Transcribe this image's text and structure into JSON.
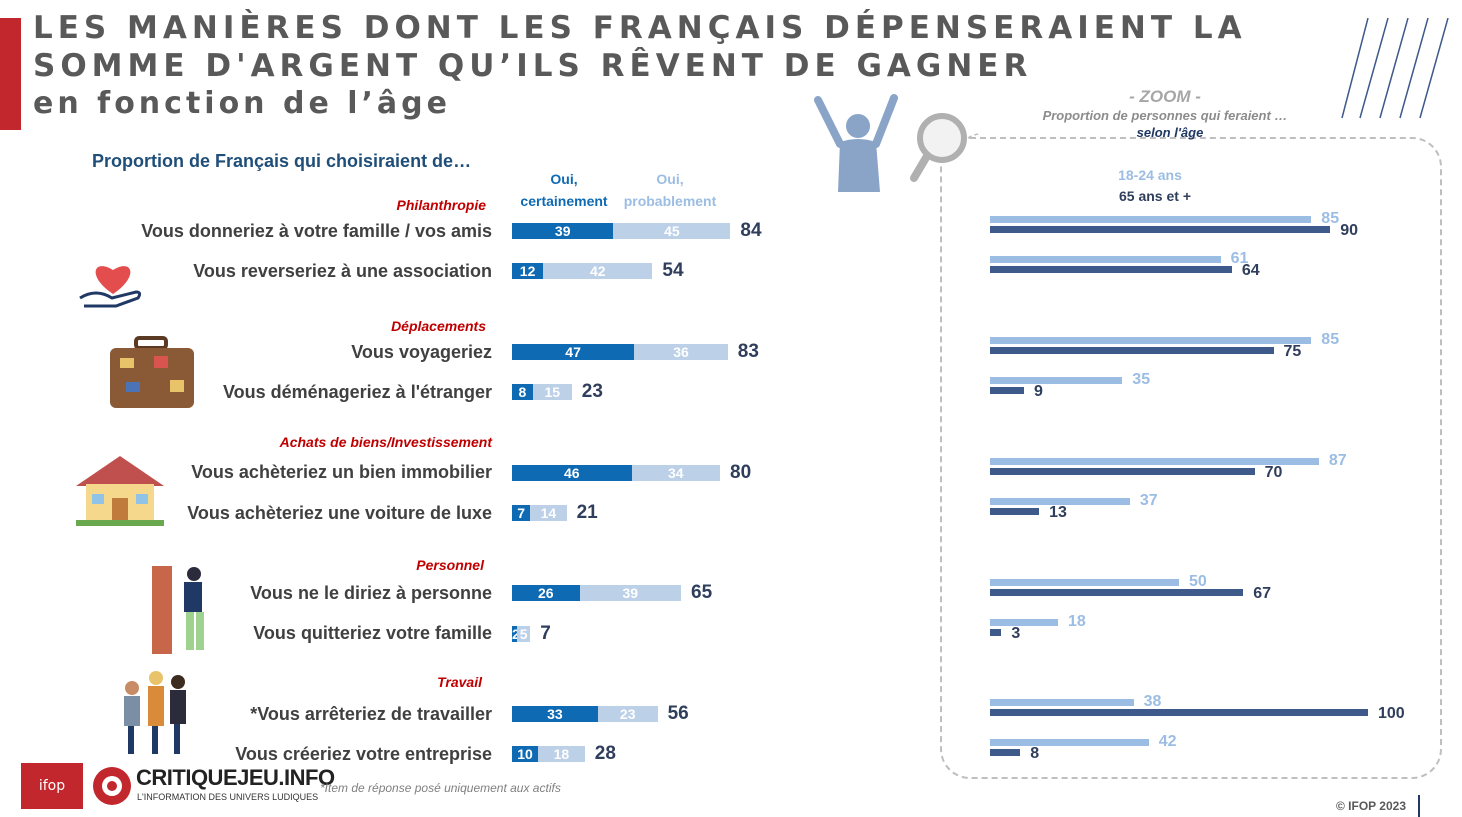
{
  "title": {
    "line1": "LES MANIÈRES DONT LES FRANÇAIS DÉPENSERAIENT LA",
    "line2": "SOMME D'ARGENT QU’ILS RÊVENT DE GAGNER",
    "line3": "en fonction de l’âge"
  },
  "subtitle": "Proportion de Français qui choisiraient de…",
  "column_headers": {
    "certain_line1": "Oui,",
    "certain_line2": "certainement",
    "probable_line1": "Oui,",
    "probable_line2": "probablement"
  },
  "zoom": {
    "title": "- ZOOM -",
    "subtitle": "Proportion de personnes qui feraient …",
    "subtitle2": "selon l'âge",
    "legend_young": "18-24 ans",
    "legend_old": "65 ans et +"
  },
  "colors": {
    "certain": "#0f6ab4",
    "probable": "#bcd0e8",
    "age_18_24": "#9cbde3",
    "age_65_plus": "#3e5a8a",
    "accent": "#c1272d"
  },
  "chart_data": [
    {
      "type": "bar",
      "orientation": "horizontal",
      "stacked": true,
      "title": "Proportion de Français qui choisiraient de…",
      "groups": [
        {
          "name": "Philanthropie",
          "categories": [
            "Vous donneriez à votre famille / vos amis",
            "Vous reverseriez à une association"
          ]
        },
        {
          "name": "Déplacements",
          "categories": [
            "Vous voyageriez",
            "Vous déménageriez à l'étranger"
          ]
        },
        {
          "name": "Achats de biens/Investissement",
          "categories": [
            "Vous achèteriez un bien immobilier",
            "Vous achèteriez une voiture de luxe"
          ]
        },
        {
          "name": "Personnel",
          "categories": [
            "Vous ne le diriez à personne",
            "Vous quitteriez votre famille"
          ]
        },
        {
          "name": "Travail",
          "categories": [
            "*Vous arrêteriez de travailler",
            "Vous créeriez votre entreprise"
          ]
        }
      ],
      "series": [
        {
          "name": "Oui, certainement",
          "values": [
            39,
            12,
            47,
            8,
            46,
            7,
            26,
            2,
            33,
            10
          ]
        },
        {
          "name": "Oui, probablement",
          "values": [
            45,
            42,
            36,
            15,
            34,
            14,
            39,
            5,
            23,
            18
          ]
        }
      ],
      "totals": [
        84,
        54,
        83,
        23,
        80,
        21,
        65,
        7,
        56,
        28
      ]
    },
    {
      "type": "bar",
      "orientation": "horizontal",
      "title": "- ZOOM -",
      "series": [
        {
          "name": "18-24 ans",
          "values": [
            85,
            61,
            85,
            35,
            87,
            37,
            50,
            18,
            38,
            42
          ]
        },
        {
          "name": "65 ans et +",
          "values": [
            90,
            64,
            75,
            9,
            70,
            13,
            67,
            3,
            100,
            8
          ]
        }
      ],
      "xlim": [
        0,
        100
      ]
    }
  ],
  "footnote": "*Item de réponse posé uniquement aux actifs",
  "copyright": "© IFOP 2023",
  "logos": {
    "ifop": "ifop",
    "critiquejeu": "CRITIQUEJEU.INFO",
    "critiquejeu_tagline": "L'INFORMATION DES UNIVERS LUDIQUES"
  }
}
